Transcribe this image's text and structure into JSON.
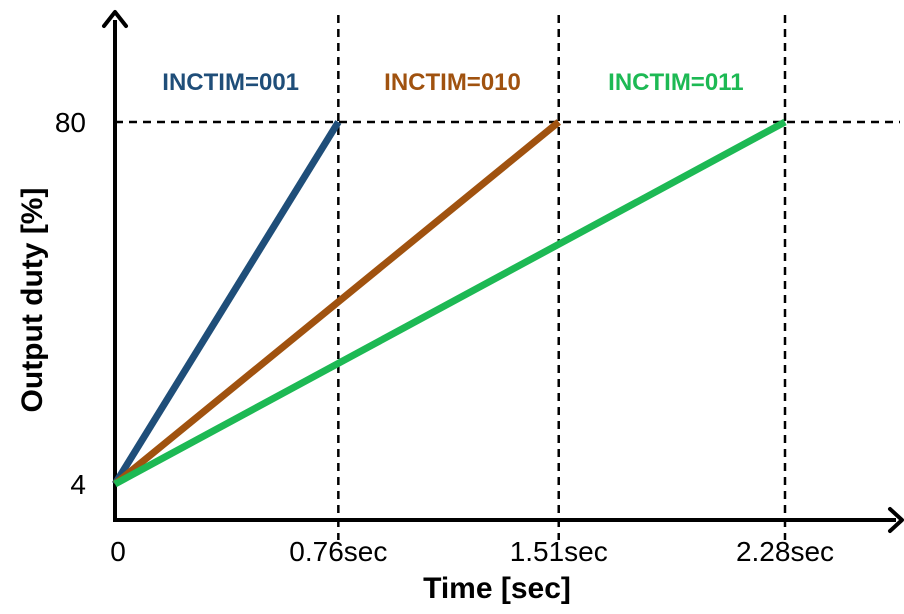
{
  "chart_data": {
    "type": "line",
    "title": "",
    "xlabel": "Time [sec]",
    "ylabel": "Output duty [%]",
    "xlim": [
      0,
      2.28
    ],
    "ylim": [
      4,
      80
    ],
    "x_ticks": [
      {
        "value": 0,
        "label": "0"
      },
      {
        "value": 0.76,
        "label": "0.76sec"
      },
      {
        "value": 1.51,
        "label": "1.51sec"
      },
      {
        "value": 2.28,
        "label": "2.28sec"
      }
    ],
    "y_ticks": [
      {
        "value": 4,
        "label": "4"
      },
      {
        "value": 80,
        "label": "80"
      }
    ],
    "grid": "dashed reference lines at x ticks and y=80",
    "series": [
      {
        "name": "INCTIM=001",
        "color": "#1f4e79",
        "x": [
          0,
          0.76
        ],
        "y": [
          4,
          80
        ]
      },
      {
        "name": "INCTIM=010",
        "color": "#a0520f",
        "x": [
          0,
          1.51
        ],
        "y": [
          4,
          80
        ]
      },
      {
        "name": "INCTIM=011",
        "color": "#1db954",
        "x": [
          0,
          2.28
        ],
        "y": [
          4,
          80
        ]
      }
    ]
  }
}
